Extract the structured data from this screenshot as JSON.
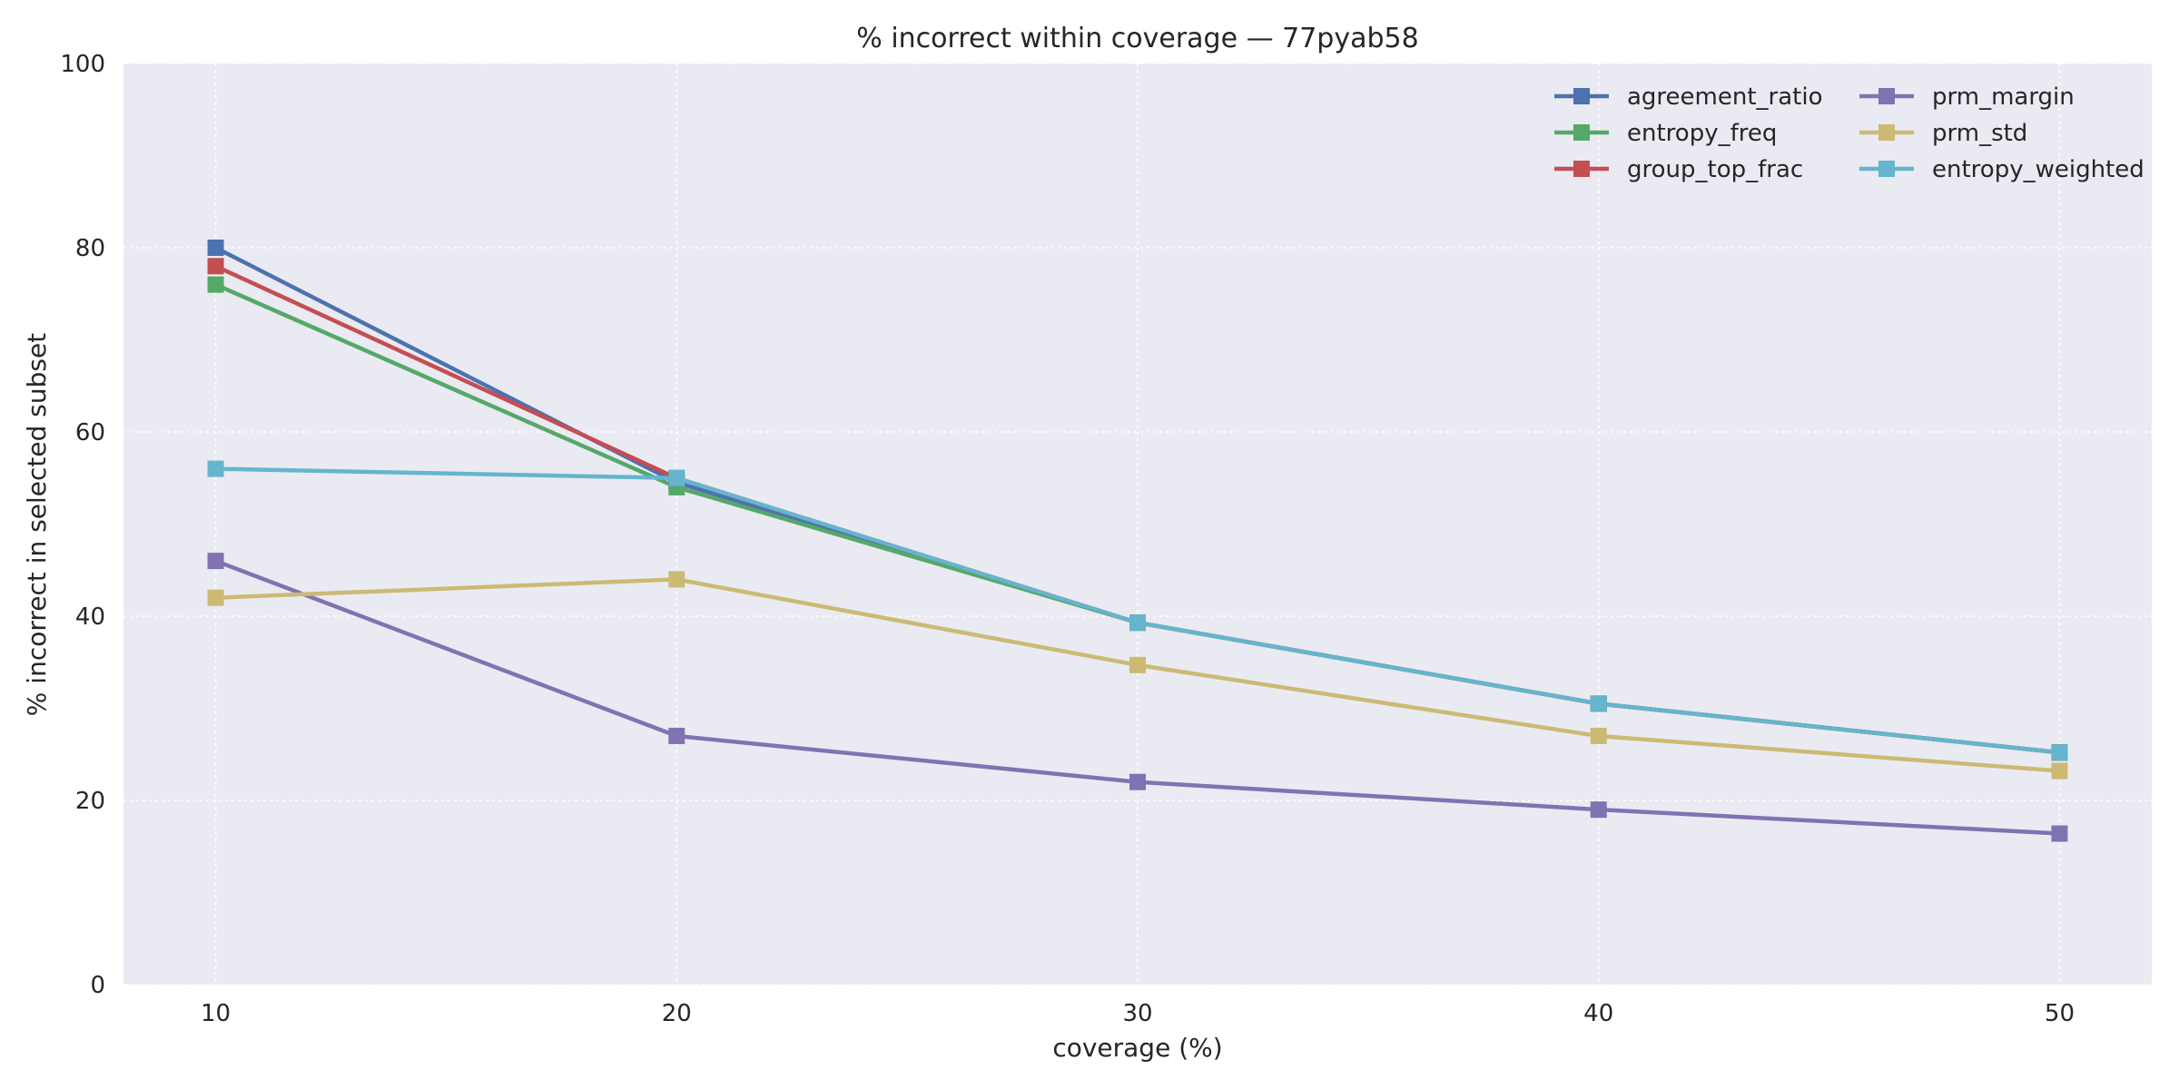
{
  "chart_data": {
    "type": "line",
    "title": "% incorrect within coverage — 77pyab58",
    "xlabel": "coverage (%)",
    "ylabel": "% incorrect in selected subset",
    "x": [
      10,
      20,
      30,
      40,
      50
    ],
    "xticks": [
      "10",
      "20",
      "30",
      "40",
      "50"
    ],
    "xlim": [
      8,
      52
    ],
    "ylim": [
      0,
      100
    ],
    "yticks": [
      0,
      20,
      40,
      60,
      80,
      100
    ],
    "grid": true,
    "background": "#EAEAF2",
    "legend_position": "top-right",
    "legend_columns": 2,
    "marker": "square",
    "series": [
      {
        "name": "agreement_ratio",
        "color": "#4C72B0",
        "values": [
          80.0,
          54.5,
          39.3,
          30.5,
          25.2
        ]
      },
      {
        "name": "entropy_freq",
        "color": "#55A868",
        "values": [
          76.0,
          54.0,
          39.3,
          30.5,
          25.2
        ]
      },
      {
        "name": "group_top_frac",
        "color": "#C44E52",
        "values": [
          78.0,
          55.0,
          39.3,
          30.5,
          25.2
        ]
      },
      {
        "name": "prm_margin",
        "color": "#8172B2",
        "values": [
          46.0,
          27.0,
          22.0,
          19.0,
          16.4
        ]
      },
      {
        "name": "prm_std",
        "color": "#CCB974",
        "values": [
          42.0,
          44.0,
          34.7,
          27.0,
          23.2
        ]
      },
      {
        "name": "entropy_weighted",
        "color": "#64B5CD",
        "values": [
          56.0,
          55.0,
          39.3,
          30.5,
          25.2
        ]
      }
    ]
  }
}
